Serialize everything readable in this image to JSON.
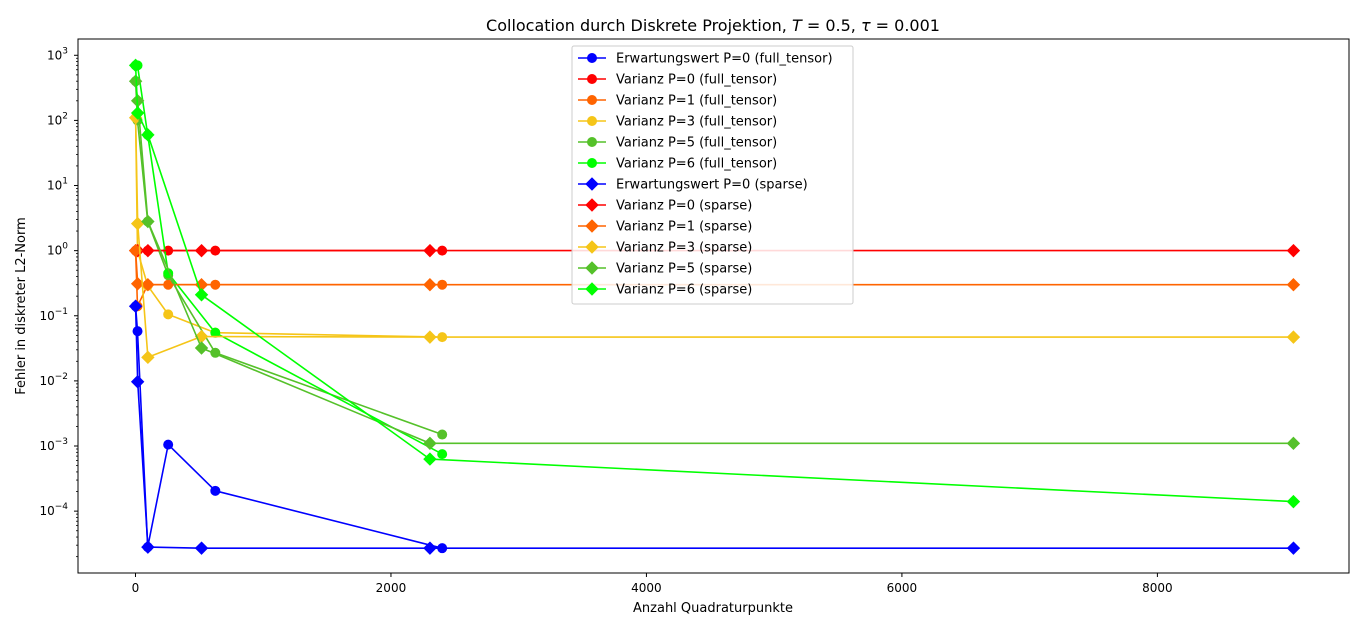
{
  "chart_data": {
    "type": "line",
    "title_main": "Collocation durch Diskrete Projektion, ",
    "title_math_1_var": "T",
    "title_math_1_val": " = 0.5, ",
    "title_math_2_var": "τ",
    "title_math_2_val": " = 0.001",
    "xlabel": "Anzahl Quadraturpunkte",
    "ylabel": "Fehler in diskreter L2-Norm",
    "xlim": [
      -450,
      9500
    ],
    "ylim_log10": [
      -4.95,
      3.25
    ],
    "yscale": "log",
    "x_ticks": [
      0,
      2000,
      4000,
      6000,
      8000
    ],
    "x_tick_labels": [
      "0",
      "2000",
      "4000",
      "6000",
      "8000"
    ],
    "y_tick_exponents": [
      -4,
      -3,
      -2,
      -1,
      0,
      1,
      2,
      3
    ],
    "y_tick_base": "10",
    "legend_position": "top-center",
    "series": [
      {
        "name": "Erwartungswert P=0 (full_tensor)",
        "color": "#0000ff",
        "marker": "circle",
        "x": [
          1,
          16,
          96,
          256,
          625,
          2401
        ],
        "y": [
          0.14,
          0.058,
          2.8e-05,
          0.00105,
          0.000205,
          2.7e-05
        ]
      },
      {
        "name": "Varianz P=0 (full_tensor)",
        "color": "#ff0000",
        "marker": "circle",
        "x": [
          1,
          16,
          96,
          256,
          625,
          2401
        ],
        "y": [
          1.0,
          1.0,
          1.0,
          1.0,
          1.0,
          1.0
        ]
      },
      {
        "name": "Varianz P=1 (full_tensor)",
        "color": "#ff6400",
        "marker": "circle",
        "x": [
          1,
          16,
          96,
          256,
          625,
          2401
        ],
        "y": [
          1.0,
          0.14,
          0.3,
          0.3,
          0.3,
          0.3
        ]
      },
      {
        "name": "Varianz P=3 (full_tensor)",
        "color": "#f5c518",
        "marker": "circle",
        "x": [
          1,
          16,
          96,
          256,
          625,
          2401
        ],
        "y": [
          110,
          1.0,
          0.29,
          0.105,
          0.055,
          0.047
        ]
      },
      {
        "name": "Varianz P=5 (full_tensor)",
        "color": "#55c12a",
        "marker": "circle",
        "x": [
          1,
          16,
          96,
          256,
          625,
          2401
        ],
        "y": [
          400,
          100,
          2.8,
          0.42,
          0.027,
          0.0015
        ]
      },
      {
        "name": "Varianz P=6 (full_tensor)",
        "color": "#00ff00",
        "marker": "circle",
        "x": [
          1,
          16,
          96,
          256,
          625,
          2401
        ],
        "y": [
          700,
          700,
          60,
          0.45,
          0.055,
          0.00075
        ]
      },
      {
        "name": "Erwartungswert P=0 (sparse)",
        "color": "#0000ff",
        "marker": "diamond",
        "x": [
          1,
          17,
          97,
          517,
          2305,
          9065
        ],
        "y": [
          0.14,
          0.0097,
          2.8e-05,
          2.7e-05,
          2.7e-05,
          2.7e-05
        ]
      },
      {
        "name": "Varianz P=0 (sparse)",
        "color": "#ff0000",
        "marker": "diamond",
        "x": [
          1,
          17,
          97,
          517,
          2305,
          9065
        ],
        "y": [
          1.0,
          1.0,
          1.0,
          1.0,
          1.0,
          1.0
        ]
      },
      {
        "name": "Varianz P=1 (sparse)",
        "color": "#ff6400",
        "marker": "diamond",
        "x": [
          1,
          17,
          97,
          517,
          2305,
          9065
        ],
        "y": [
          1.0,
          0.31,
          0.3,
          0.3,
          0.3,
          0.3
        ]
      },
      {
        "name": "Varianz P=3 (sparse)",
        "color": "#f5c518",
        "marker": "diamond",
        "x": [
          1,
          17,
          97,
          517,
          2305,
          9065
        ],
        "y": [
          110,
          2.6,
          0.023,
          0.048,
          0.047,
          0.047
        ]
      },
      {
        "name": "Varianz P=5 (sparse)",
        "color": "#55c12a",
        "marker": "diamond",
        "x": [
          1,
          17,
          97,
          517,
          2305,
          9065
        ],
        "y": [
          400,
          200,
          2.8,
          0.032,
          0.0011,
          0.0011
        ]
      },
      {
        "name": "Varianz P=6 (sparse)",
        "color": "#00ff00",
        "marker": "diamond",
        "x": [
          1,
          17,
          97,
          517,
          2305,
          9065
        ],
        "y": [
          700,
          130,
          60,
          0.21,
          0.00063,
          0.00014
        ]
      }
    ]
  }
}
